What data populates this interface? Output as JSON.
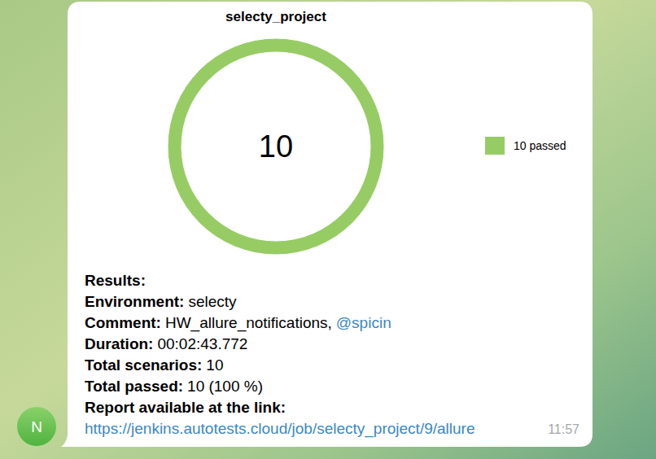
{
  "chart_data": {
    "type": "donut",
    "title": "selecty_project",
    "categories": [
      "10 passed"
    ],
    "values": [
      10
    ],
    "colors": [
      "#97cc64"
    ],
    "total": 10,
    "legend": "right"
  },
  "message": {
    "avatar": "N",
    "lines": [
      {
        "label": "Results:"
      },
      {
        "label": "Environment:",
        "value": "selecty"
      },
      {
        "label": "Comment:",
        "value": "HW_allure_notifications,",
        "mention": "@spicin"
      },
      {
        "label": "Duration:",
        "value": "00:02:43.772"
      },
      {
        "label": "Total scenarios:",
        "value": 10
      },
      {
        "label": "Total passed:",
        "value": "10 (100 %)"
      },
      {
        "label": "Report available at the link:"
      }
    ],
    "link": "https://jenkins.autotests.cloud/job/selecty_project/9/allure",
    "time": "11:57"
  }
}
